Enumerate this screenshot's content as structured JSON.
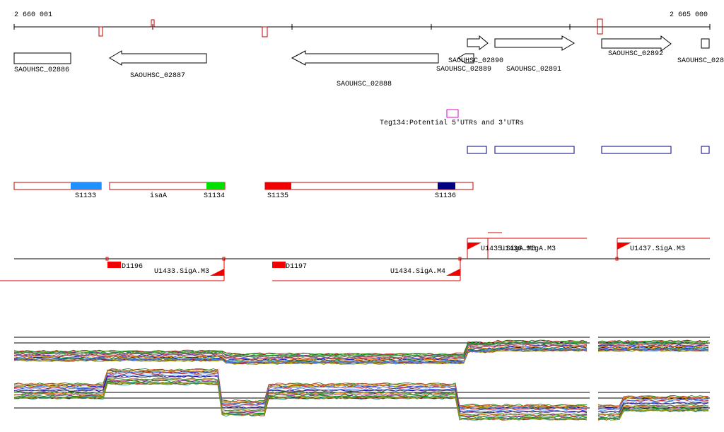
{
  "ruler": {
    "start": "2 660 001",
    "end": "2 665 000"
  },
  "genes": [
    "SAOUHSC_02886",
    "SAOUHSC_02887",
    "SAOUHSC_02888",
    "SAOUHSC_02889",
    "SAOUHSC_02890",
    "SAOUHSC_02891",
    "SAOUHSC_02892",
    "SAOUHSC_028"
  ],
  "annotation": "Teg134:Potential 5'UTRs and 3'UTRs",
  "segments": [
    "S1133",
    "isaA",
    "S1134",
    "S1135",
    "S1136"
  ],
  "promoters": [
    "D1196",
    "U1433.SigA.M3",
    "D1197",
    "U1434.SigA.M4",
    "U1435.SigA.M3",
    "U1436.SigA.M3",
    "U1437.SigA.M3"
  ]
}
